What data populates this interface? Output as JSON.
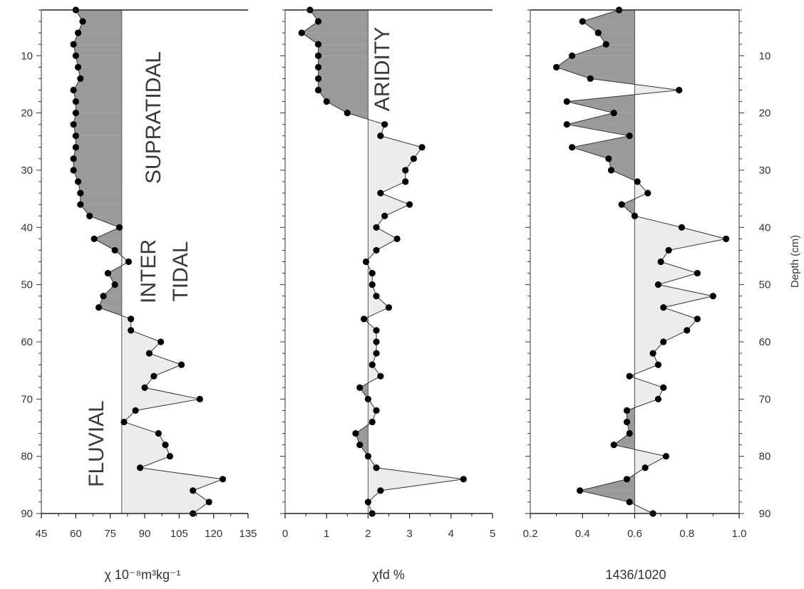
{
  "y_axis": {
    "label": "Depth (cm)",
    "range": [
      2,
      90
    ],
    "ticks": [
      10,
      20,
      30,
      40,
      50,
      60,
      70,
      80,
      90
    ]
  },
  "chart_data": [
    {
      "type": "line",
      "panel": "susceptibility",
      "xlabel": "χ 10⁻⁸m³kg⁻¹",
      "xlim": [
        45,
        135
      ],
      "xticks": [
        45,
        60,
        75,
        90,
        105,
        120,
        135
      ],
      "baseline": 80,
      "fill_colors": {
        "left": "#9a9a9a",
        "right": "#ececec"
      },
      "depth": [
        2,
        4,
        6,
        8,
        10,
        12,
        14,
        16,
        18,
        20,
        22,
        24,
        26,
        28,
        30,
        32,
        34,
        36,
        38,
        40,
        42,
        44,
        46,
        48,
        50,
        52,
        54,
        56,
        58,
        60,
        62,
        64,
        66,
        68,
        70,
        72,
        74,
        76,
        78,
        80,
        82,
        84,
        86,
        88,
        90
      ],
      "x": [
        60,
        63,
        61,
        59,
        60,
        61,
        62,
        59,
        60,
        60,
        59,
        60,
        60,
        59,
        59,
        61,
        62,
        62,
        66,
        79,
        68,
        77,
        83,
        74,
        77,
        72,
        70,
        84,
        84,
        97,
        92,
        106,
        94,
        90,
        114,
        86,
        81,
        96,
        99,
        101,
        88,
        124,
        111,
        118,
        111
      ],
      "annotations": [
        "SUPRATIDAL",
        "INTER",
        "TIDAL",
        "FLUVIAL"
      ]
    },
    {
      "type": "line",
      "panel": "frequency_dependent",
      "xlabel": "χfd %",
      "xlim": [
        0,
        5
      ],
      "xticks": [
        0,
        1,
        2,
        3,
        4,
        5
      ],
      "baseline": 2,
      "fill_colors": {
        "left": "#9a9a9a",
        "right": "#ececec"
      },
      "depth": [
        2,
        4,
        6,
        8,
        10,
        12,
        14,
        16,
        18,
        20,
        22,
        24,
        26,
        28,
        30,
        32,
        34,
        36,
        38,
        40,
        42,
        44,
        46,
        48,
        50,
        52,
        54,
        56,
        58,
        60,
        62,
        64,
        66,
        68,
        70,
        72,
        74,
        76,
        78,
        80,
        82,
        84,
        86,
        88,
        90
      ],
      "x": [
        0.6,
        0.8,
        0.4,
        0.8,
        0.8,
        0.8,
        0.8,
        0.8,
        1.0,
        1.5,
        2.4,
        2.3,
        3.3,
        3.1,
        2.9,
        2.9,
        2.3,
        3.0,
        2.4,
        2.2,
        2.7,
        2.2,
        1.95,
        2.1,
        2.1,
        2.2,
        2.5,
        1.9,
        2.2,
        2.2,
        2.2,
        2.1,
        2.3,
        1.8,
        2.0,
        2.2,
        2.1,
        1.7,
        1.8,
        2.0,
        2.2,
        4.3,
        2.3,
        2.0,
        2.1
      ],
      "annotations": [
        "ARIDITY"
      ]
    },
    {
      "type": "line",
      "panel": "ratio",
      "xlabel": "1436/1020",
      "xlim": [
        0.2,
        1.0
      ],
      "xticks": [
        "0.2",
        "0.4",
        "0.6",
        "0.8",
        "1.0"
      ],
      "baseline": 0.6,
      "fill_colors": {
        "left": "#9a9a9a",
        "right": "#ececec"
      },
      "depth": [
        2,
        4,
        6,
        8,
        10,
        12,
        14,
        16,
        18,
        20,
        22,
        24,
        26,
        28,
        30,
        32,
        34,
        36,
        38,
        40,
        42,
        44,
        46,
        48,
        50,
        52,
        54,
        56,
        58,
        60,
        62,
        64,
        66,
        68,
        70,
        72,
        74,
        76,
        78,
        80,
        82,
        84,
        86,
        88,
        90
      ],
      "x": [
        0.54,
        0.4,
        0.46,
        0.49,
        0.36,
        0.3,
        0.43,
        0.77,
        0.34,
        0.52,
        0.34,
        0.58,
        0.36,
        0.5,
        0.51,
        0.61,
        0.65,
        0.55,
        0.6,
        0.78,
        0.95,
        0.73,
        0.7,
        0.84,
        0.69,
        0.9,
        0.71,
        0.84,
        0.8,
        0.71,
        0.67,
        0.69,
        0.58,
        0.71,
        0.69,
        0.57,
        0.57,
        0.58,
        0.52,
        0.72,
        0.64,
        0.57,
        0.39,
        0.58,
        0.67
      ],
      "annotations": []
    }
  ]
}
